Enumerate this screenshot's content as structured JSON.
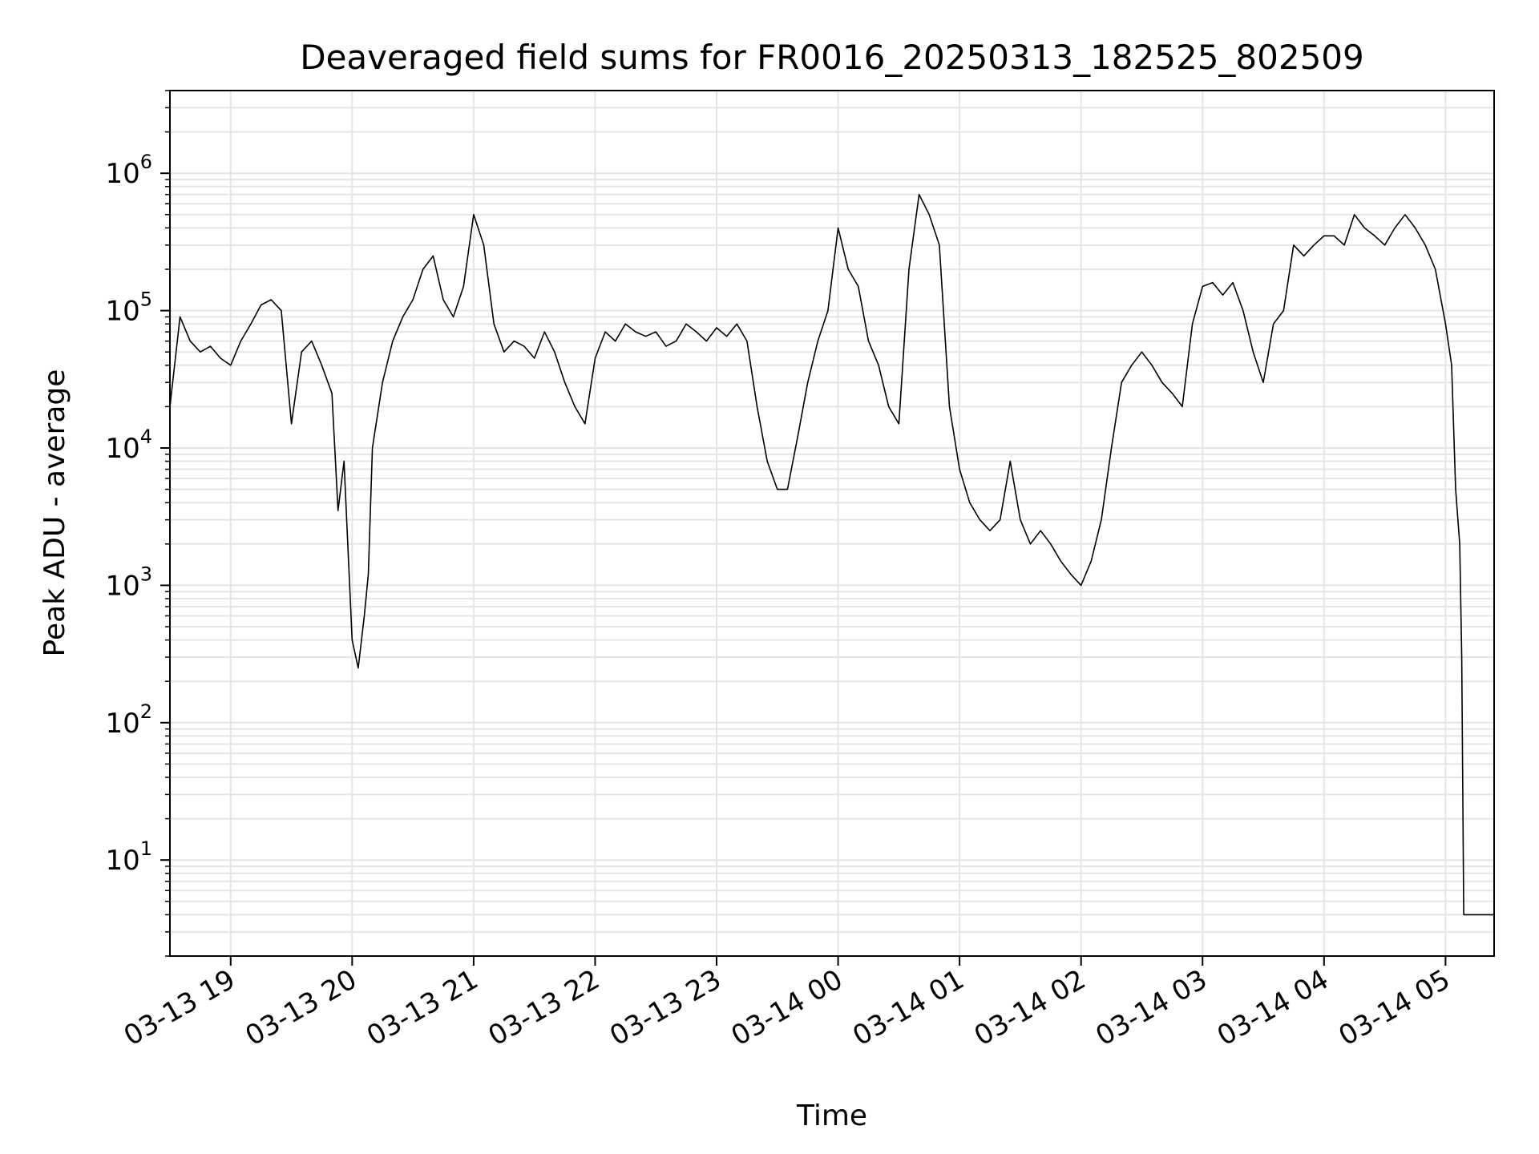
{
  "chart_data": {
    "type": "line",
    "title": "Deaveraged field sums for FR0016_20250313_182525_802509",
    "xlabel": "Time",
    "ylabel": "Peak ADU - average",
    "x_scale": "time",
    "y_scale": "log",
    "xlim": [
      "2025-03-13 18:30",
      "2025-03-14 05:24"
    ],
    "ylim": [
      2,
      4000000
    ],
    "grid": true,
    "x_tick_labels": [
      "03-13 19",
      "03-13 20",
      "03-13 21",
      "03-13 22",
      "03-13 23",
      "03-14 00",
      "03-14 01",
      "03-14 02",
      "03-14 03",
      "03-14 04",
      "03-14 05"
    ],
    "x_tick_values": [
      "2025-03-13 19:00",
      "2025-03-13 20:00",
      "2025-03-13 21:00",
      "2025-03-13 22:00",
      "2025-03-13 23:00",
      "2025-03-14 00:00",
      "2025-03-14 01:00",
      "2025-03-14 02:00",
      "2025-03-14 03:00",
      "2025-03-14 04:00",
      "2025-03-14 05:00"
    ],
    "y_tick_values": [
      10,
      100,
      1000,
      10000,
      100000,
      1000000
    ],
    "y_tick_labels": [
      {
        "base": "10",
        "exp": "1"
      },
      {
        "base": "10",
        "exp": "2"
      },
      {
        "base": "10",
        "exp": "3"
      },
      {
        "base": "10",
        "exp": "4"
      },
      {
        "base": "10",
        "exp": "5"
      },
      {
        "base": "10",
        "exp": "6"
      }
    ],
    "line_color": "#000000",
    "grid_color": "#e5e5e5",
    "series": [
      {
        "x": [
          "2025-03-13 18:30",
          "2025-03-13 18:35",
          "2025-03-13 18:40",
          "2025-03-13 18:45",
          "2025-03-13 18:50",
          "2025-03-13 18:55",
          "2025-03-13 19:00",
          "2025-03-13 19:05",
          "2025-03-13 19:10",
          "2025-03-13 19:15",
          "2025-03-13 19:20",
          "2025-03-13 19:25",
          "2025-03-13 19:30",
          "2025-03-13 19:35",
          "2025-03-13 19:40",
          "2025-03-13 19:45",
          "2025-03-13 19:50",
          "2025-03-13 19:53",
          "2025-03-13 19:56",
          "2025-03-13 20:00",
          "2025-03-13 20:03",
          "2025-03-13 20:06",
          "2025-03-13 20:08",
          "2025-03-13 20:10",
          "2025-03-13 20:15",
          "2025-03-13 20:20",
          "2025-03-13 20:25",
          "2025-03-13 20:30",
          "2025-03-13 20:35",
          "2025-03-13 20:40",
          "2025-03-13 20:45",
          "2025-03-13 20:50",
          "2025-03-13 20:55",
          "2025-03-13 21:00",
          "2025-03-13 21:05",
          "2025-03-13 21:10",
          "2025-03-13 21:15",
          "2025-03-13 21:20",
          "2025-03-13 21:25",
          "2025-03-13 21:30",
          "2025-03-13 21:35",
          "2025-03-13 21:40",
          "2025-03-13 21:45",
          "2025-03-13 21:50",
          "2025-03-13 21:55",
          "2025-03-13 22:00",
          "2025-03-13 22:05",
          "2025-03-13 22:10",
          "2025-03-13 22:15",
          "2025-03-13 22:20",
          "2025-03-13 22:25",
          "2025-03-13 22:30",
          "2025-03-13 22:35",
          "2025-03-13 22:40",
          "2025-03-13 22:45",
          "2025-03-13 22:50",
          "2025-03-13 22:55",
          "2025-03-13 23:00",
          "2025-03-13 23:05",
          "2025-03-13 23:10",
          "2025-03-13 23:15",
          "2025-03-13 23:20",
          "2025-03-13 23:25",
          "2025-03-13 23:30",
          "2025-03-13 23:35",
          "2025-03-13 23:40",
          "2025-03-13 23:45",
          "2025-03-13 23:50",
          "2025-03-13 23:55",
          "2025-03-14 00:00",
          "2025-03-14 00:05",
          "2025-03-14 00:10",
          "2025-03-14 00:15",
          "2025-03-14 00:20",
          "2025-03-14 00:25",
          "2025-03-14 00:30",
          "2025-03-14 00:35",
          "2025-03-14 00:40",
          "2025-03-14 00:45",
          "2025-03-14 00:50",
          "2025-03-14 00:55",
          "2025-03-14 01:00",
          "2025-03-14 01:05",
          "2025-03-14 01:10",
          "2025-03-14 01:15",
          "2025-03-14 01:20",
          "2025-03-14 01:25",
          "2025-03-14 01:30",
          "2025-03-14 01:35",
          "2025-03-14 01:40",
          "2025-03-14 01:45",
          "2025-03-14 01:50",
          "2025-03-14 01:55",
          "2025-03-14 02:00",
          "2025-03-14 02:05",
          "2025-03-14 02:10",
          "2025-03-14 02:15",
          "2025-03-14 02:20",
          "2025-03-14 02:25",
          "2025-03-14 02:30",
          "2025-03-14 02:35",
          "2025-03-14 02:40",
          "2025-03-14 02:45",
          "2025-03-14 02:50",
          "2025-03-14 02:55",
          "2025-03-14 03:00",
          "2025-03-14 03:05",
          "2025-03-14 03:10",
          "2025-03-14 03:15",
          "2025-03-14 03:20",
          "2025-03-14 03:25",
          "2025-03-14 03:30",
          "2025-03-14 03:35",
          "2025-03-14 03:40",
          "2025-03-14 03:45",
          "2025-03-14 03:50",
          "2025-03-14 03:55",
          "2025-03-14 04:00",
          "2025-03-14 04:05",
          "2025-03-14 04:10",
          "2025-03-14 04:15",
          "2025-03-14 04:20",
          "2025-03-14 04:25",
          "2025-03-14 04:30",
          "2025-03-14 04:35",
          "2025-03-14 04:40",
          "2025-03-14 04:45",
          "2025-03-14 04:50",
          "2025-03-14 04:55",
          "2025-03-14 05:00",
          "2025-03-14 05:03",
          "2025-03-14 05:05",
          "2025-03-14 05:07",
          "2025-03-14 05:08",
          "2025-03-14 05:09",
          "2025-03-14 05:10",
          "2025-03-14 05:12",
          "2025-03-14 05:15",
          "2025-03-14 05:20",
          "2025-03-14 05:24"
        ],
        "y": [
          20000,
          90000,
          60000,
          50000,
          55000,
          45000,
          40000,
          60000,
          80000,
          110000,
          120000,
          100000,
          15000,
          50000,
          60000,
          40000,
          25000,
          3500,
          8000,
          400,
          250,
          600,
          1200,
          10000,
          30000,
          60000,
          90000,
          120000,
          200000,
          250000,
          120000,
          90000,
          150000,
          500000,
          300000,
          80000,
          50000,
          60000,
          55000,
          45000,
          70000,
          50000,
          30000,
          20000,
          15000,
          45000,
          70000,
          60000,
          80000,
          70000,
          65000,
          70000,
          55000,
          60000,
          80000,
          70000,
          60000,
          75000,
          65000,
          80000,
          60000,
          20000,
          8000,
          5000,
          5000,
          12000,
          30000,
          60000,
          100000,
          400000,
          200000,
          150000,
          60000,
          40000,
          20000,
          15000,
          200000,
          700000,
          500000,
          300000,
          20000,
          7000,
          4000,
          3000,
          2500,
          3000,
          8000,
          3000,
          2000,
          2500,
          2000,
          1500,
          1200,
          1000,
          1500,
          3000,
          10000,
          30000,
          40000,
          50000,
          40000,
          30000,
          25000,
          20000,
          80000,
          150000,
          160000,
          130000,
          160000,
          100000,
          50000,
          30000,
          80000,
          100000,
          300000,
          250000,
          300000,
          350000,
          350000,
          300000,
          500000,
          400000,
          350000,
          300000,
          400000,
          500000,
          400000,
          300000,
          200000,
          80000,
          40000,
          5000,
          2000,
          300,
          4,
          4,
          4,
          4,
          4,
          4
        ]
      }
    ]
  }
}
